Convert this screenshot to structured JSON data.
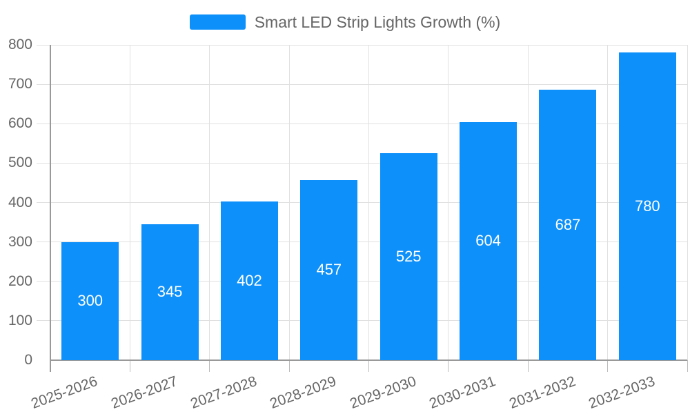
{
  "legend": {
    "label": "Smart LED Strip Lights Growth (%)"
  },
  "chart_data": {
    "type": "bar",
    "title": "",
    "legend_entries": [
      "Smart LED Strip Lights Growth (%)"
    ],
    "legend_position": "top-center",
    "categories": [
      "2025-2026",
      "2026-2027",
      "2027-2028",
      "2028-2029",
      "2029-2030",
      "2030-2031",
      "2031-2032",
      "2032-2033"
    ],
    "series": [
      {
        "name": "Smart LED Strip Lights Growth (%)",
        "values": [
          300,
          345,
          402,
          457,
          525,
          604,
          687,
          780
        ]
      }
    ],
    "value_labels": [
      "300",
      "345",
      "402",
      "457",
      "525",
      "604",
      "687",
      "780"
    ],
    "xlabel": "",
    "ylabel": "",
    "ylim": [
      0,
      800
    ],
    "ytick_interval": 100,
    "yticks": [
      0,
      100,
      200,
      300,
      400,
      500,
      600,
      700,
      800
    ],
    "grid": true,
    "x_label_rotation_deg": -20,
    "colors": {
      "bar": "#0D90FA",
      "value_label": "#FFFFFF",
      "axis_text": "#666666",
      "gridline": "#E0E0E0",
      "axis_line": "#999999",
      "tick": "#BBBBBB",
      "background": "#FFFFFF"
    }
  }
}
